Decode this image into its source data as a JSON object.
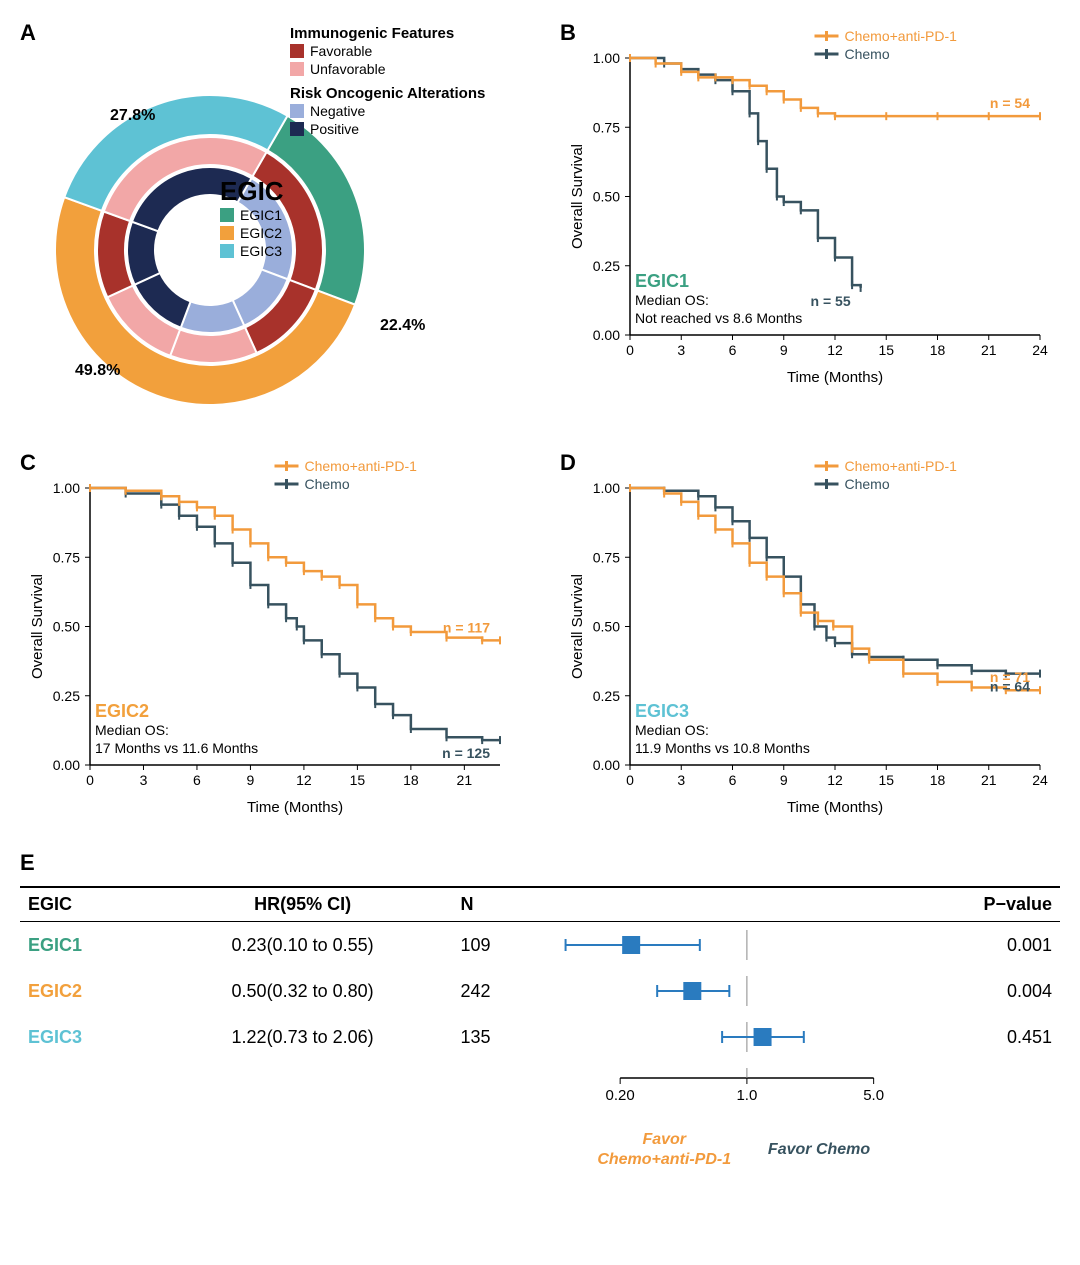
{
  "colors": {
    "egic1": "#3ba082",
    "egic2": "#f2a03c",
    "egic3": "#5ec2d4",
    "immuno_fav": "#a8322b",
    "immuno_unfav": "#f2a7a7",
    "risk_neg": "#9aaedb",
    "risk_pos": "#1d2a52",
    "chemo_combo": "#f29a3c",
    "chemo": "#37525f",
    "forest_box": "#2a7bbf",
    "axis": "#000000",
    "grid": "#dddddd"
  },
  "panelA": {
    "label": "A",
    "title": "EGIC",
    "legends": {
      "immuno_title": "Immunogenic Features",
      "immuno_items": [
        {
          "key": "immuno_fav",
          "label": "Favorable"
        },
        {
          "key": "immuno_unfav",
          "label": "Unfavorable"
        }
      ],
      "risk_title": "Risk Oncogenic Alterations",
      "risk_items": [
        {
          "key": "risk_neg",
          "label": "Negative"
        },
        {
          "key": "risk_pos",
          "label": "Positive"
        }
      ],
      "egic_items": [
        {
          "key": "egic1",
          "label": "EGIC1"
        },
        {
          "key": "egic2",
          "label": "EGIC2"
        },
        {
          "key": "egic3",
          "label": "EGIC3"
        }
      ]
    },
    "annotations": {
      "egic1_pct": "22.4%",
      "egic2_pct": "49.8%",
      "egic3_pct": "27.8%"
    },
    "outer_ring": {
      "start_deg": 30,
      "end_deg": 390,
      "inner_r": 115,
      "outer_r": 155,
      "segments": [
        {
          "key": "egic1",
          "frac": 0.224
        },
        {
          "key": "egic2",
          "frac": 0.498
        },
        {
          "key": "egic3",
          "frac": 0.278
        }
      ]
    },
    "middle_ring": {
      "start_deg": 30,
      "end_deg": 390,
      "inner_r": 85,
      "outer_r": 113,
      "segments": [
        {
          "key": "immuno_fav",
          "frac": 0.224
        },
        {
          "key": "immuno_fav",
          "frac": 0.125
        },
        {
          "key": "immuno_unfav",
          "frac": 0.125
        },
        {
          "key": "immuno_unfav",
          "frac": 0.124
        },
        {
          "key": "immuno_fav",
          "frac": 0.124
        },
        {
          "key": "immuno_unfav",
          "frac": 0.278
        }
      ]
    },
    "inner_ring": {
      "start_deg": 30,
      "end_deg": 390,
      "inner_r": 55,
      "outer_r": 83,
      "segments": [
        {
          "key": "risk_neg",
          "frac": 0.224
        },
        {
          "key": "risk_neg",
          "frac": 0.125
        },
        {
          "key": "risk_neg",
          "frac": 0.125
        },
        {
          "key": "risk_pos",
          "frac": 0.124
        },
        {
          "key": "risk_pos",
          "frac": 0.124
        },
        {
          "key": "risk_pos",
          "frac": 0.278
        }
      ]
    }
  },
  "km_common": {
    "ylabel": "Overall Survival",
    "xlabel": "Time (Months)",
    "ylim": [
      0,
      1
    ],
    "yticks": [
      0,
      0.25,
      0.5,
      0.75,
      1.0
    ],
    "ytick_labels": [
      "0.00",
      "0.25",
      "0.50",
      "0.75",
      "1.00"
    ],
    "legend_items": [
      {
        "key": "chemo_combo",
        "label": "Chemo+anti-PD-1"
      },
      {
        "key": "chemo",
        "label": "Chemo"
      }
    ]
  },
  "panelB": {
    "label": "B",
    "group_label": "EGIC1",
    "group_color_key": "egic1",
    "median_text": "Not reached vs 8.6 Months",
    "median_prefix": "Median OS:",
    "xlim": [
      0,
      24
    ],
    "xticks": [
      0,
      3,
      6,
      9,
      12,
      15,
      18,
      21,
      24
    ],
    "n_combo": "n = 54",
    "n_chemo": "n = 55",
    "curves": {
      "combo": [
        [
          0,
          1.0
        ],
        [
          1.5,
          0.98
        ],
        [
          3,
          0.95
        ],
        [
          4,
          0.93
        ],
        [
          5,
          0.93
        ],
        [
          6,
          0.92
        ],
        [
          7,
          0.9
        ],
        [
          8,
          0.88
        ],
        [
          9,
          0.85
        ],
        [
          10,
          0.82
        ],
        [
          11,
          0.8
        ],
        [
          12,
          0.79
        ],
        [
          15,
          0.79
        ],
        [
          18,
          0.79
        ],
        [
          21,
          0.79
        ],
        [
          24,
          0.79
        ]
      ],
      "chemo": [
        [
          0,
          1.0
        ],
        [
          2,
          0.98
        ],
        [
          3,
          0.96
        ],
        [
          4,
          0.94
        ],
        [
          5,
          0.92
        ],
        [
          6,
          0.88
        ],
        [
          7,
          0.8
        ],
        [
          7.5,
          0.7
        ],
        [
          8,
          0.6
        ],
        [
          8.6,
          0.5
        ],
        [
          9,
          0.48
        ],
        [
          10,
          0.45
        ],
        [
          11,
          0.35
        ],
        [
          12,
          0.28
        ],
        [
          13,
          0.18
        ],
        [
          13.5,
          0.17
        ]
      ]
    }
  },
  "panelC": {
    "label": "C",
    "group_label": "EGIC2",
    "group_color_key": "egic2",
    "median_text": "17 Months vs 11.6 Months",
    "median_prefix": "Median OS:",
    "xlim": [
      0,
      23
    ],
    "xticks": [
      0,
      3,
      6,
      9,
      12,
      15,
      18,
      21
    ],
    "n_combo": "n = 117",
    "n_chemo": "n = 125",
    "curves": {
      "combo": [
        [
          0,
          1.0
        ],
        [
          2,
          0.99
        ],
        [
          4,
          0.97
        ],
        [
          5,
          0.95
        ],
        [
          6,
          0.93
        ],
        [
          7,
          0.9
        ],
        [
          8,
          0.85
        ],
        [
          9,
          0.8
        ],
        [
          10,
          0.75
        ],
        [
          11,
          0.73
        ],
        [
          12,
          0.7
        ],
        [
          13,
          0.68
        ],
        [
          14,
          0.65
        ],
        [
          15,
          0.58
        ],
        [
          16,
          0.53
        ],
        [
          17,
          0.5
        ],
        [
          18,
          0.48
        ],
        [
          20,
          0.46
        ],
        [
          22,
          0.45
        ],
        [
          23,
          0.45
        ]
      ],
      "chemo": [
        [
          0,
          1.0
        ],
        [
          2,
          0.98
        ],
        [
          4,
          0.94
        ],
        [
          5,
          0.9
        ],
        [
          6,
          0.86
        ],
        [
          7,
          0.8
        ],
        [
          8,
          0.73
        ],
        [
          9,
          0.65
        ],
        [
          10,
          0.58
        ],
        [
          11,
          0.53
        ],
        [
          11.6,
          0.5
        ],
        [
          12,
          0.45
        ],
        [
          13,
          0.4
        ],
        [
          14,
          0.33
        ],
        [
          15,
          0.28
        ],
        [
          16,
          0.22
        ],
        [
          17,
          0.18
        ],
        [
          18,
          0.13
        ],
        [
          20,
          0.1
        ],
        [
          22,
          0.09
        ],
        [
          23,
          0.09
        ]
      ]
    }
  },
  "panelD": {
    "label": "D",
    "group_label": "EGIC3",
    "group_color_key": "egic3",
    "median_text": "11.9 Months vs 10.8 Months",
    "median_prefix": "Median OS:",
    "xlim": [
      0,
      24
    ],
    "xticks": [
      0,
      3,
      6,
      9,
      12,
      15,
      18,
      21,
      24
    ],
    "n_combo": "n = 71",
    "n_chemo": "n = 64",
    "curves": {
      "combo": [
        [
          0,
          1.0
        ],
        [
          2,
          0.98
        ],
        [
          3,
          0.95
        ],
        [
          4,
          0.9
        ],
        [
          5,
          0.85
        ],
        [
          6,
          0.8
        ],
        [
          7,
          0.73
        ],
        [
          8,
          0.68
        ],
        [
          9,
          0.62
        ],
        [
          10,
          0.55
        ],
        [
          11,
          0.52
        ],
        [
          11.9,
          0.5
        ],
        [
          13,
          0.42
        ],
        [
          14,
          0.38
        ],
        [
          16,
          0.33
        ],
        [
          18,
          0.3
        ],
        [
          20,
          0.28
        ],
        [
          22,
          0.27
        ],
        [
          24,
          0.27
        ]
      ],
      "chemo": [
        [
          0,
          1.0
        ],
        [
          2,
          0.99
        ],
        [
          4,
          0.97
        ],
        [
          5,
          0.93
        ],
        [
          6,
          0.88
        ],
        [
          7,
          0.82
        ],
        [
          8,
          0.75
        ],
        [
          9,
          0.68
        ],
        [
          10,
          0.58
        ],
        [
          10.8,
          0.5
        ],
        [
          11.5,
          0.46
        ],
        [
          12,
          0.44
        ],
        [
          13,
          0.4
        ],
        [
          14,
          0.39
        ],
        [
          16,
          0.38
        ],
        [
          18,
          0.36
        ],
        [
          20,
          0.34
        ],
        [
          22,
          0.33
        ],
        [
          24,
          0.33
        ]
      ]
    }
  },
  "panelE": {
    "label": "E",
    "headers": {
      "egic": "EGIC",
      "hr": "HR(95% CI)",
      "n": "N",
      "p": "P−value"
    },
    "favor_left": "Favor",
    "favor_left_2": "Chemo+anti-PD-1",
    "favor_right": "Favor Chemo",
    "log_axis": {
      "ticks": [
        0.2,
        1.0,
        5.0
      ],
      "labels": [
        "0.20",
        "1.0",
        "5.0"
      ],
      "min": 0.08,
      "max": 6.0
    },
    "rows": [
      {
        "name": "EGIC1",
        "color_key": "egic1",
        "hr_text": "0.23(0.10 to 0.55)",
        "n": "109",
        "p": "0.001",
        "hr": 0.23,
        "lo": 0.1,
        "hi": 0.55
      },
      {
        "name": "EGIC2",
        "color_key": "egic2",
        "hr_text": "0.50(0.32 to 0.80)",
        "n": "242",
        "p": "0.004",
        "hr": 0.5,
        "lo": 0.32,
        "hi": 0.8
      },
      {
        "name": "EGIC3",
        "color_key": "egic3",
        "hr_text": "1.22(0.73 to 2.06)",
        "n": "135",
        "p": "0.451",
        "hr": 1.22,
        "lo": 0.73,
        "hi": 2.06
      }
    ]
  }
}
